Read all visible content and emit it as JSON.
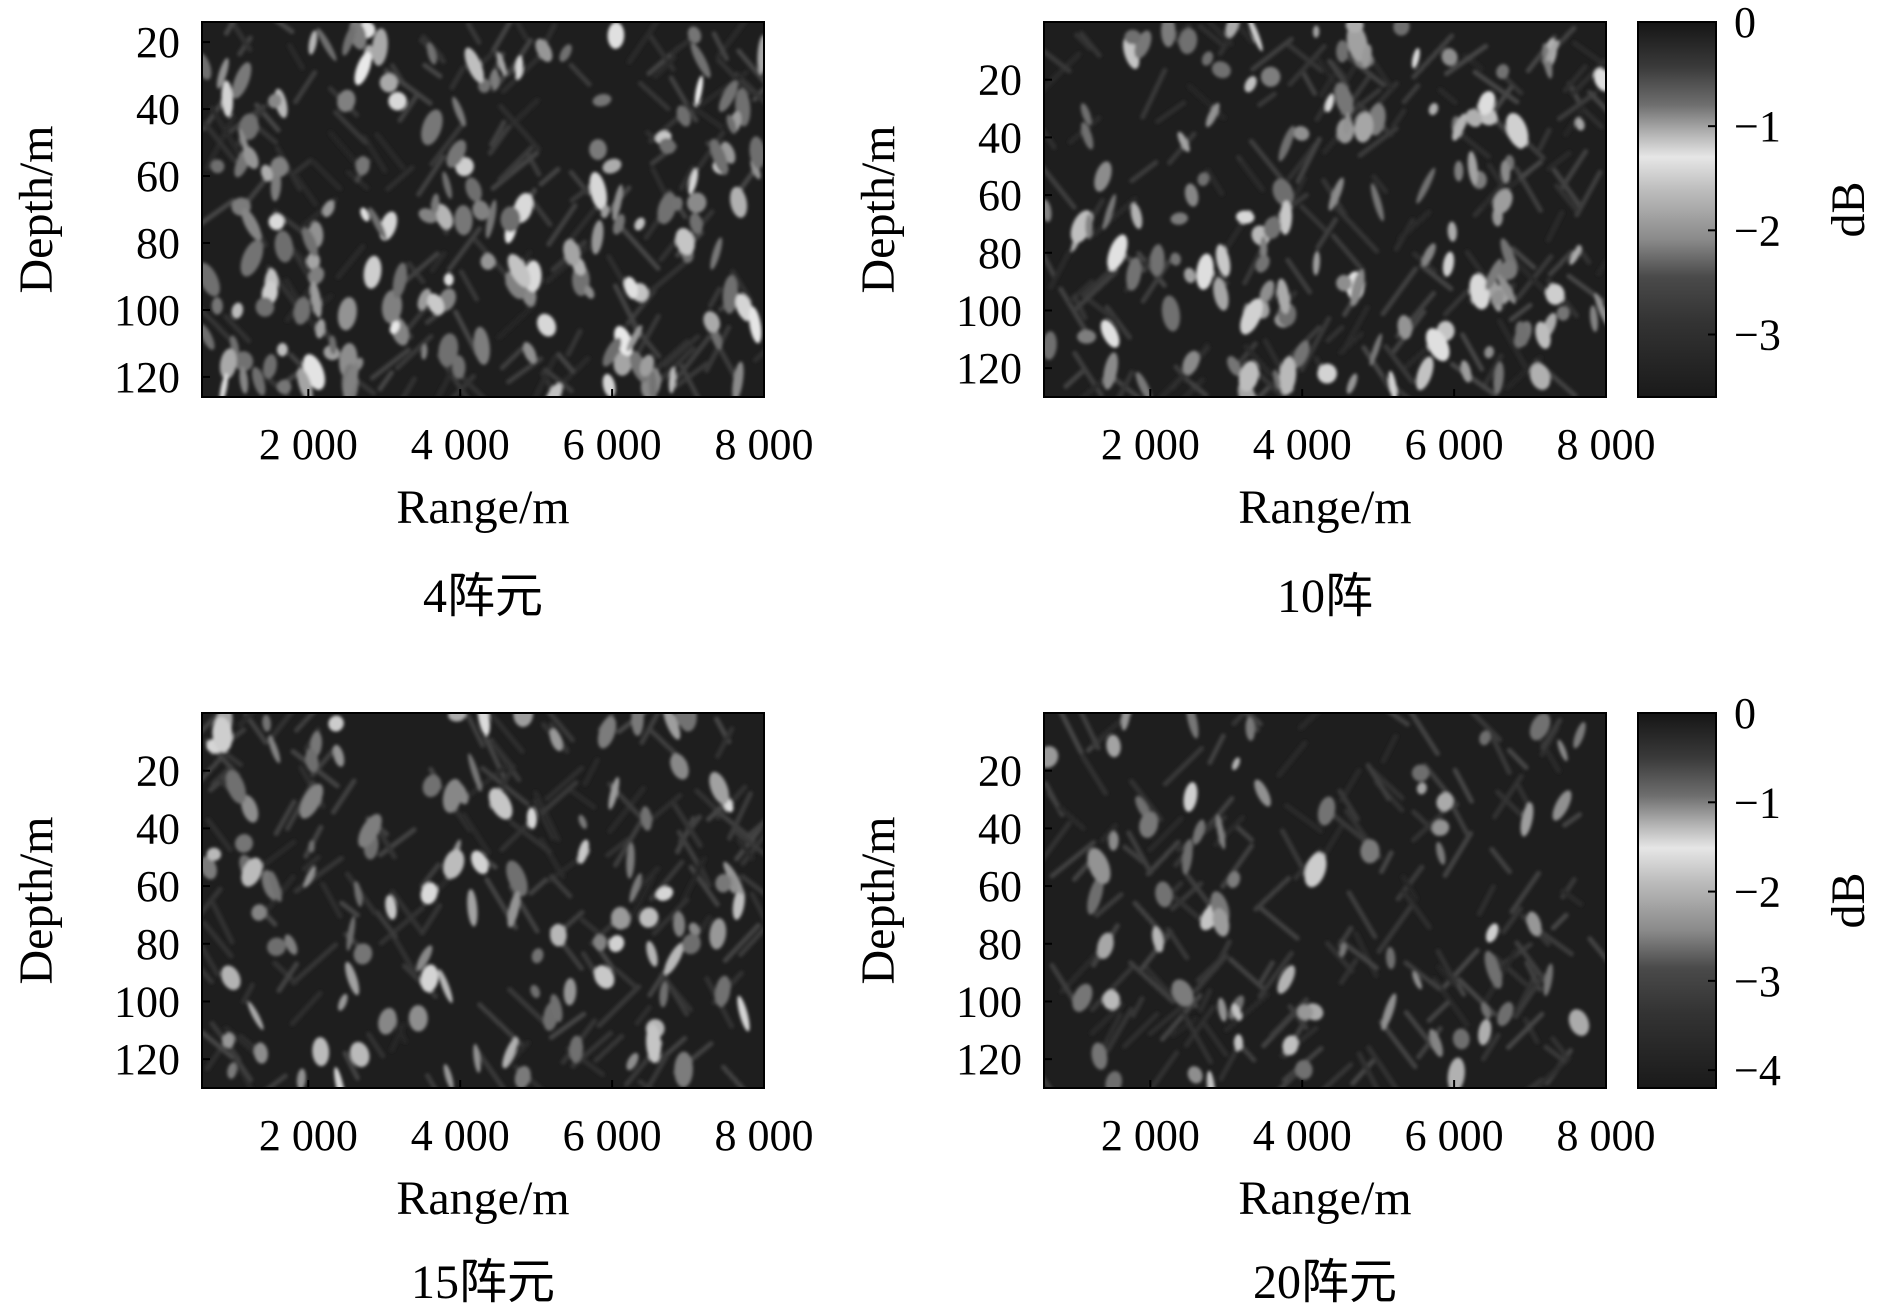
{
  "chart_data": [
    {
      "type": "heatmap",
      "caption": "4阵元",
      "xlabel": "Range/m",
      "ylabel": "Depth/m",
      "x_ticks": [
        2000,
        4000,
        6000,
        8000
      ],
      "x_tick_labels": [
        "2 000",
        "4 000",
        "6 000",
        "8 000"
      ],
      "y_ticks": [
        20,
        40,
        60,
        80,
        100,
        120
      ],
      "y_tick_labels": [
        "20",
        "40",
        "60",
        "80",
        "100",
        "120"
      ],
      "xlim": [
        600,
        8000
      ],
      "ylim": [
        14,
        126
      ],
      "colormap": "gray",
      "spot_density": 1.0
    },
    {
      "type": "heatmap",
      "caption": "10阵",
      "xlabel": "Range/m",
      "ylabel": "Depth/m",
      "x_ticks": [
        2000,
        4000,
        6000,
        8000
      ],
      "x_tick_labels": [
        "2 000",
        "4 000",
        "6 000",
        "8 000"
      ],
      "y_ticks": [
        20,
        40,
        60,
        80,
        100,
        120
      ],
      "y_tick_labels": [
        "20",
        "40",
        "60",
        "80",
        "100",
        "120"
      ],
      "xlim": [
        600,
        8000
      ],
      "ylim": [
        0,
        130
      ],
      "colormap": "gray",
      "spot_density": 0.8,
      "colorbar": {
        "label": "dB",
        "ticks": [
          0,
          -1,
          -2,
          -3
        ],
        "tick_labels": [
          "0",
          "−1",
          "−2",
          "−3"
        ],
        "range": [
          -3.6,
          0
        ]
      }
    },
    {
      "type": "heatmap",
      "caption": "15阵元",
      "xlabel": "Range/m",
      "ylabel": "Depth/m",
      "x_ticks": [
        2000,
        4000,
        6000,
        8000
      ],
      "x_tick_labels": [
        "2 000",
        "4 000",
        "6 000",
        "8 000"
      ],
      "y_ticks": [
        20,
        40,
        60,
        80,
        100,
        120
      ],
      "y_tick_labels": [
        "20",
        "40",
        "60",
        "80",
        "100",
        "120"
      ],
      "xlim": [
        600,
        8000
      ],
      "ylim": [
        0,
        130
      ],
      "colormap": "gray",
      "spot_density": 0.65
    },
    {
      "type": "heatmap",
      "caption": "20阵元",
      "xlabel": "Range/m",
      "ylabel": "Depth/m",
      "x_ticks": [
        2000,
        4000,
        6000,
        8000
      ],
      "x_tick_labels": [
        "2 000",
        "4 000",
        "6 000",
        "8 000"
      ],
      "y_ticks": [
        20,
        40,
        60,
        80,
        100,
        120
      ],
      "y_tick_labels": [
        "20",
        "40",
        "60",
        "80",
        "100",
        "120"
      ],
      "xlim": [
        600,
        8000
      ],
      "ylim": [
        0,
        130
      ],
      "colormap": "gray",
      "spot_density": 0.4,
      "colorbar": {
        "label": "dB",
        "ticks": [
          0,
          -1,
          -2,
          -3,
          -4
        ],
        "tick_labels": [
          "0",
          "−1",
          "−2",
          "−3",
          "−4"
        ],
        "range": [
          -4.2,
          0
        ]
      }
    }
  ]
}
